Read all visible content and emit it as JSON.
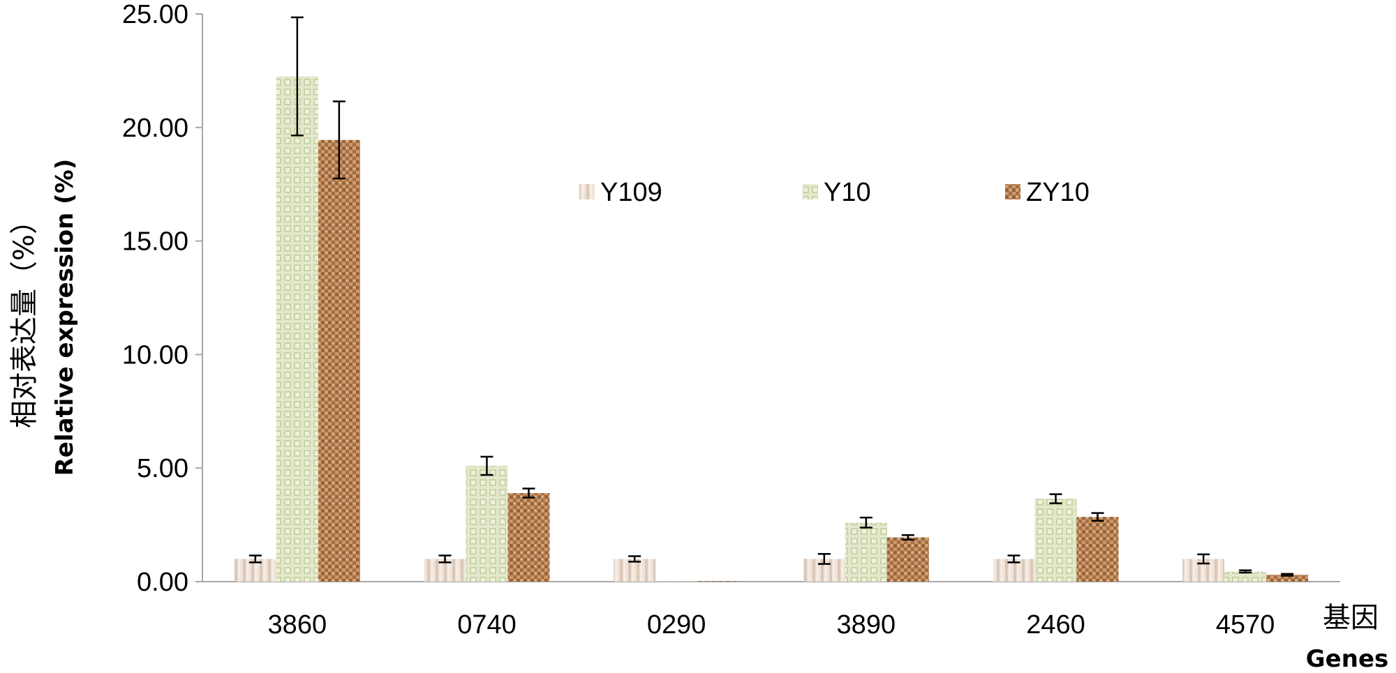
{
  "chart_data": {
    "type": "bar",
    "categories": [
      "3860",
      "0740",
      "0290",
      "3890",
      "2460",
      "4570"
    ],
    "series": [
      {
        "name": "Y109",
        "color": "#e6d6ca",
        "values": [
          1.0,
          1.0,
          1.0,
          1.0,
          1.0,
          1.0
        ],
        "errors": [
          0.15,
          0.15,
          0.12,
          0.22,
          0.15,
          0.2
        ]
      },
      {
        "name": "Y10",
        "color": "#d4dcb4",
        "values": [
          22.25,
          5.1,
          0.02,
          2.6,
          3.65,
          0.45
        ],
        "errors": [
          2.6,
          0.4,
          0.0,
          0.22,
          0.2,
          0.05
        ]
      },
      {
        "name": "ZY10",
        "color": "#b98458",
        "values": [
          19.45,
          3.9,
          0.02,
          1.95,
          2.85,
          0.3
        ],
        "errors": [
          1.7,
          0.2,
          0.0,
          0.1,
          0.17,
          0.04
        ]
      }
    ],
    "ylim": [
      0,
      25
    ],
    "yticks": [
      "0.00",
      "5.00",
      "10.00",
      "15.00",
      "20.00",
      "25.00"
    ],
    "ytick_values": [
      0,
      5,
      10,
      15,
      20,
      25
    ],
    "ylabel": "相对表达量（%）",
    "ylabel_en": "Relative expression (%)",
    "xlabel": "基因",
    "xlabel_en": "Genes",
    "legend_position": "top-center",
    "grid": false
  }
}
